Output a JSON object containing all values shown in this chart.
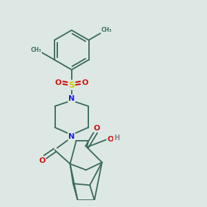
{
  "bg_color": "#dde8e4",
  "bond_color": "#3d6b5c",
  "bond_width": 1.4,
  "atom_colors": {
    "N": "#1a1aee",
    "O": "#cc1111",
    "S": "#cccc00",
    "C": "#3d6b5c",
    "H": "#888888"
  },
  "figsize": [
    3.0,
    3.0
  ],
  "dpi": 100
}
